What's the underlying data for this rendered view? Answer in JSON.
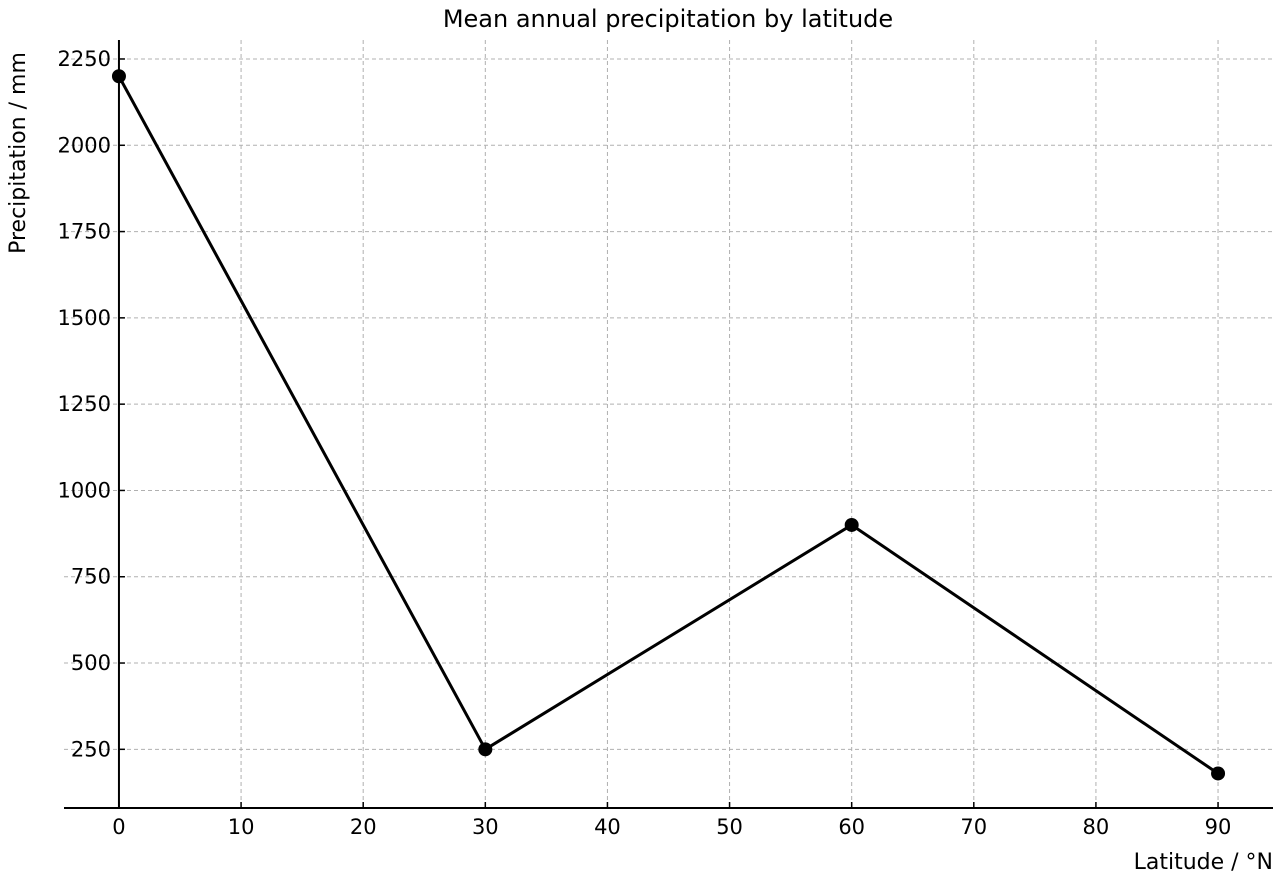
{
  "chart_data": {
    "type": "line",
    "title": "Mean annual precipitation by latitude",
    "xlabel": "Latitude / °N",
    "ylabel": "Precipitation / mm",
    "x": [
      0,
      30,
      60,
      90
    ],
    "series": [
      {
        "values": [
          2200,
          250,
          900,
          180
        ]
      }
    ],
    "xlim": [
      -4.5,
      94.5
    ],
    "ylim": [
      80,
      2305
    ],
    "x_ticks": [
      0,
      10,
      20,
      30,
      40,
      50,
      60,
      70,
      80,
      90
    ],
    "y_ticks": [
      250,
      500,
      750,
      1000,
      1250,
      1500,
      1750,
      2000,
      2250
    ],
    "grid": true,
    "line_color": "#000000",
    "grid_color": "#b0b0b0"
  }
}
